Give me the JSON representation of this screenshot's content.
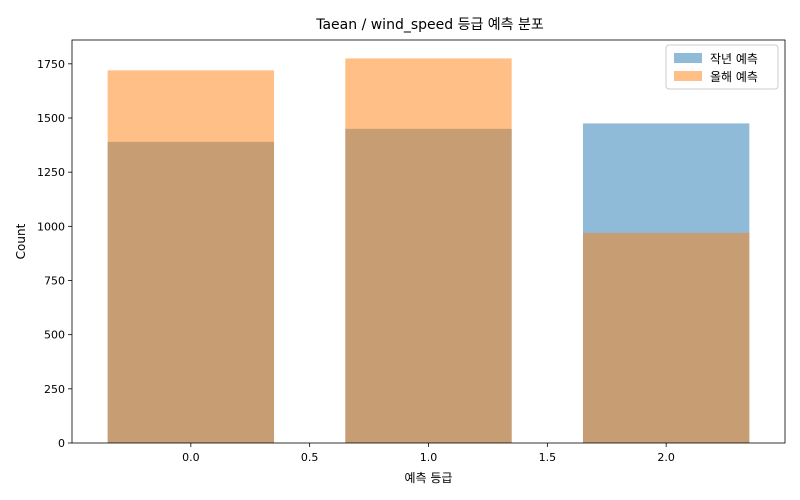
{
  "chart_data": {
    "type": "bar",
    "title": "Taean / wind_speed 등급 예측 분포",
    "xlabel": "예측 등급",
    "ylabel": "Count",
    "x": [
      0,
      1,
      2
    ],
    "series": [
      {
        "name": "작년 예측",
        "values": [
          1390,
          1450,
          1475
        ],
        "color": "#1f77b4",
        "opacity": 0.5
      },
      {
        "name": "올해 예측",
        "values": [
          1720,
          1775,
          970
        ],
        "color": "#ff7f0e",
        "opacity": 0.5
      }
    ],
    "bar_width": 0.7,
    "xlim": [
      -0.5,
      2.5
    ],
    "ylim": [
      0,
      1860
    ],
    "x_ticks": [
      0.0,
      0.5,
      1.0,
      1.5,
      2.0
    ],
    "x_tick_labels": [
      "0.0",
      "0.5",
      "1.0",
      "1.5",
      "2.0"
    ],
    "y_ticks": [
      0,
      250,
      500,
      750,
      1000,
      1250,
      1500,
      1750
    ],
    "y_tick_labels": [
      "0",
      "250",
      "500",
      "750",
      "1000",
      "1250",
      "1500",
      "1750"
    ],
    "legend_position": "top-right",
    "grid": false
  }
}
